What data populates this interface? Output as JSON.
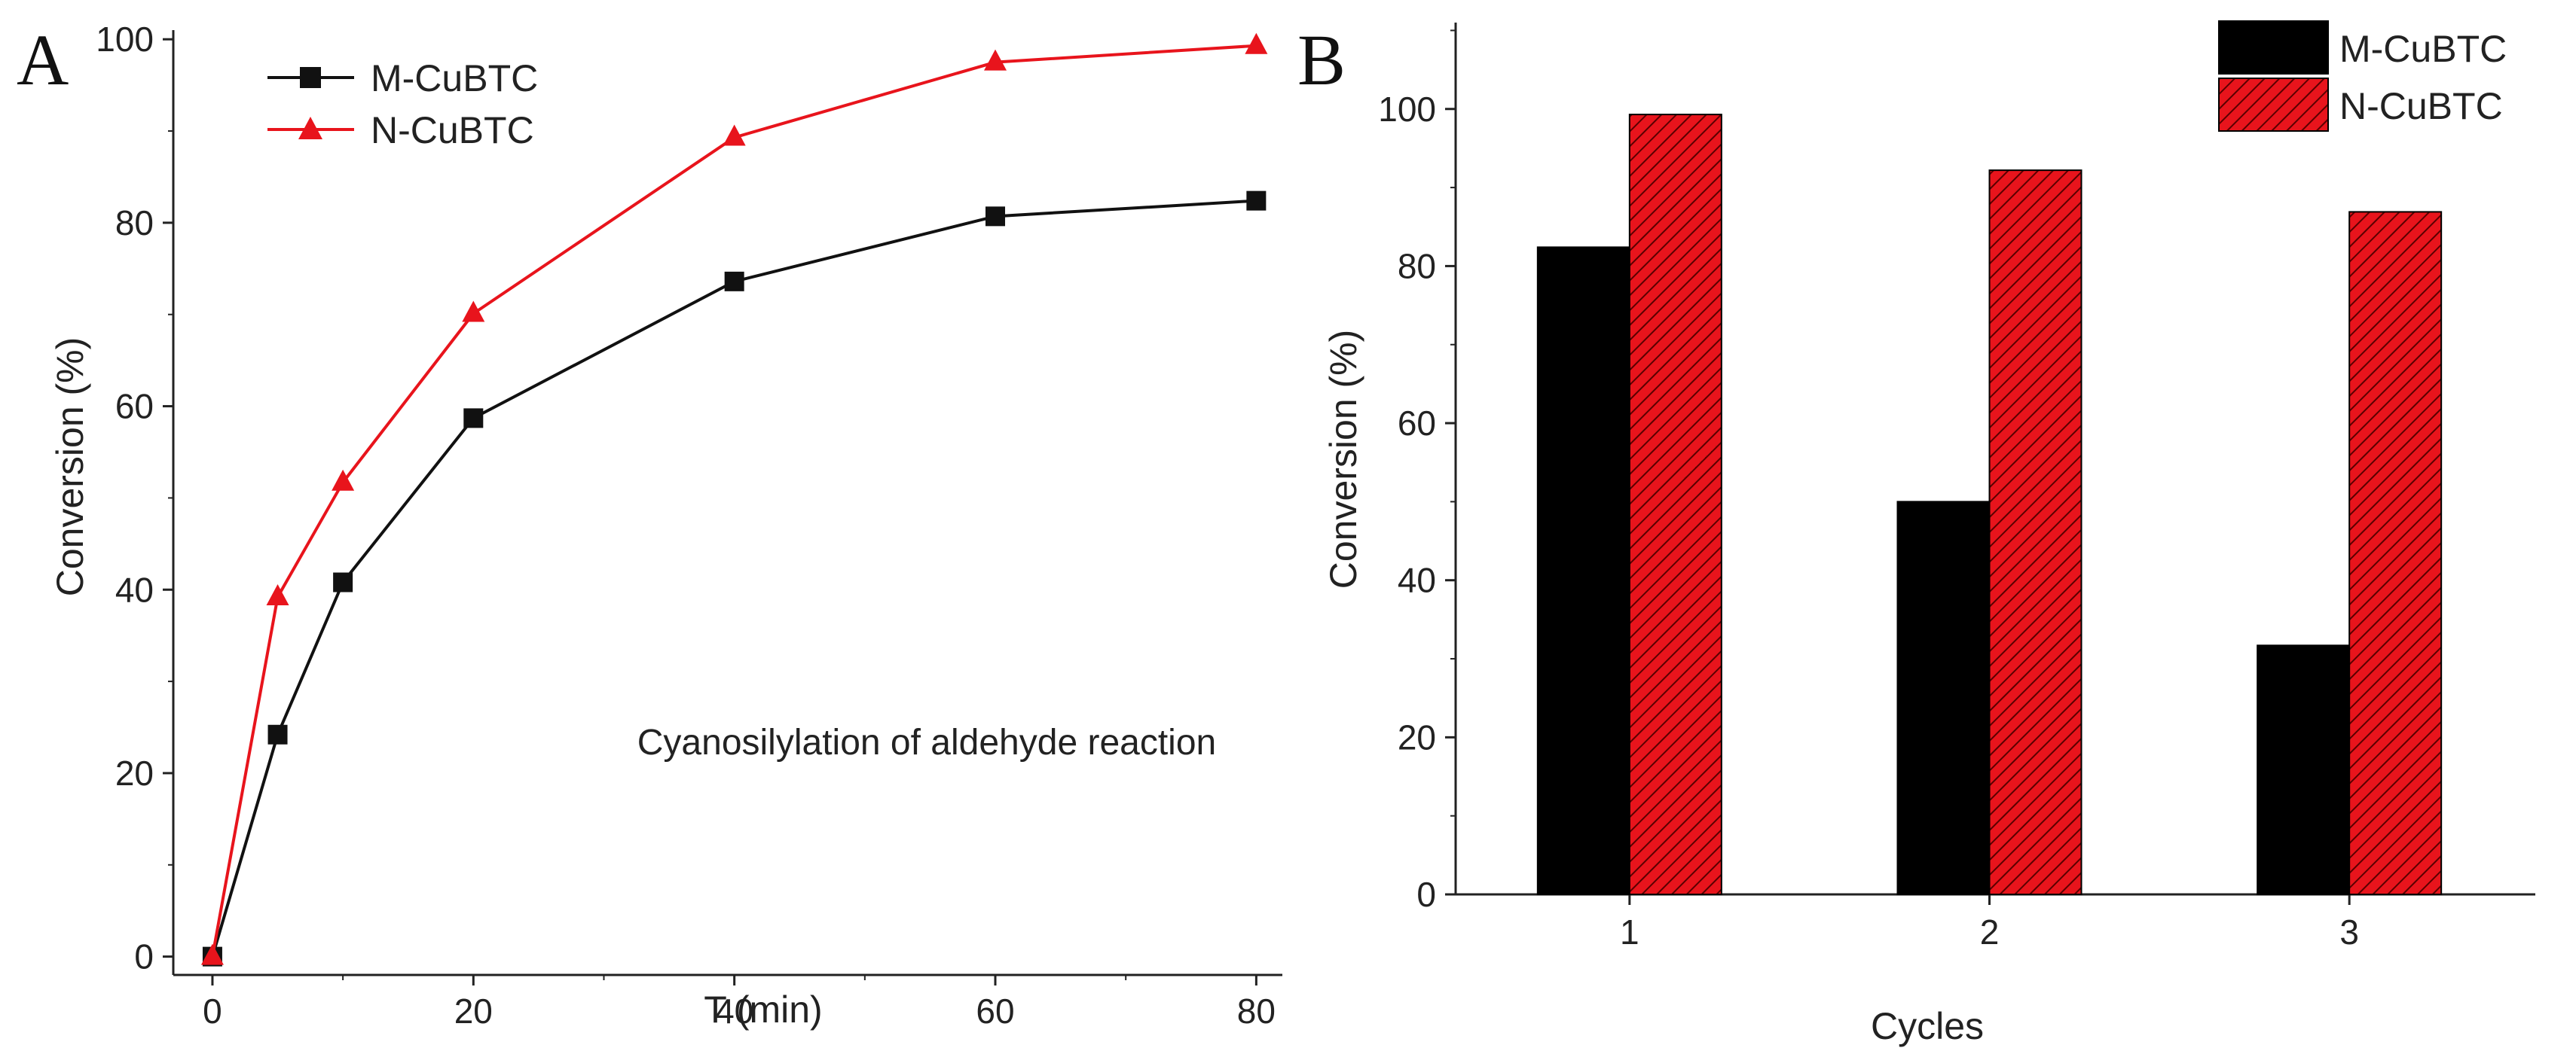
{
  "chart_data": [
    {
      "type": "line",
      "panel_label": "A",
      "title": "",
      "xlabel": "T (min)",
      "ylabel": "Conversion (%)",
      "xlim": [
        -3,
        82
      ],
      "ylim": [
        -2,
        101
      ],
      "xticks": [
        0,
        20,
        40,
        60,
        80
      ],
      "yticks": [
        0,
        20,
        40,
        60,
        80,
        100
      ],
      "annotation": "Cyanosilylation of aldehyde reaction",
      "legend_position": "top-left",
      "series": [
        {
          "name": "M-CuBTC",
          "color": "#111111",
          "marker": "square",
          "x": [
            0,
            5,
            10,
            20,
            40,
            60,
            80
          ],
          "y": [
            0,
            24.2,
            40.8,
            58.7,
            73.6,
            80.7,
            82.4
          ]
        },
        {
          "name": "N-CuBTC",
          "color": "#e8141c",
          "marker": "triangle",
          "x": [
            0,
            5,
            10,
            20,
            40,
            60,
            80
          ],
          "y": [
            0,
            39.2,
            51.7,
            70.1,
            89.3,
            97.5,
            99.3
          ]
        }
      ]
    },
    {
      "type": "bar",
      "panel_label": "B",
      "title": "",
      "xlabel": "Cycles",
      "ylabel": "Conversion (%)",
      "categories": [
        "1",
        "2",
        "3"
      ],
      "ylim": [
        0,
        111
      ],
      "yticks": [
        0,
        20,
        40,
        60,
        80,
        100
      ],
      "legend_position": "top-right",
      "series": [
        {
          "name": "M-CuBTC",
          "color": "#000000",
          "pattern": "solid",
          "values": [
            82.4,
            50.0,
            31.7
          ]
        },
        {
          "name": "N-CuBTC",
          "color": "#e8141c",
          "pattern": "hatched",
          "values": [
            99.3,
            92.2,
            86.9
          ]
        }
      ]
    }
  ]
}
